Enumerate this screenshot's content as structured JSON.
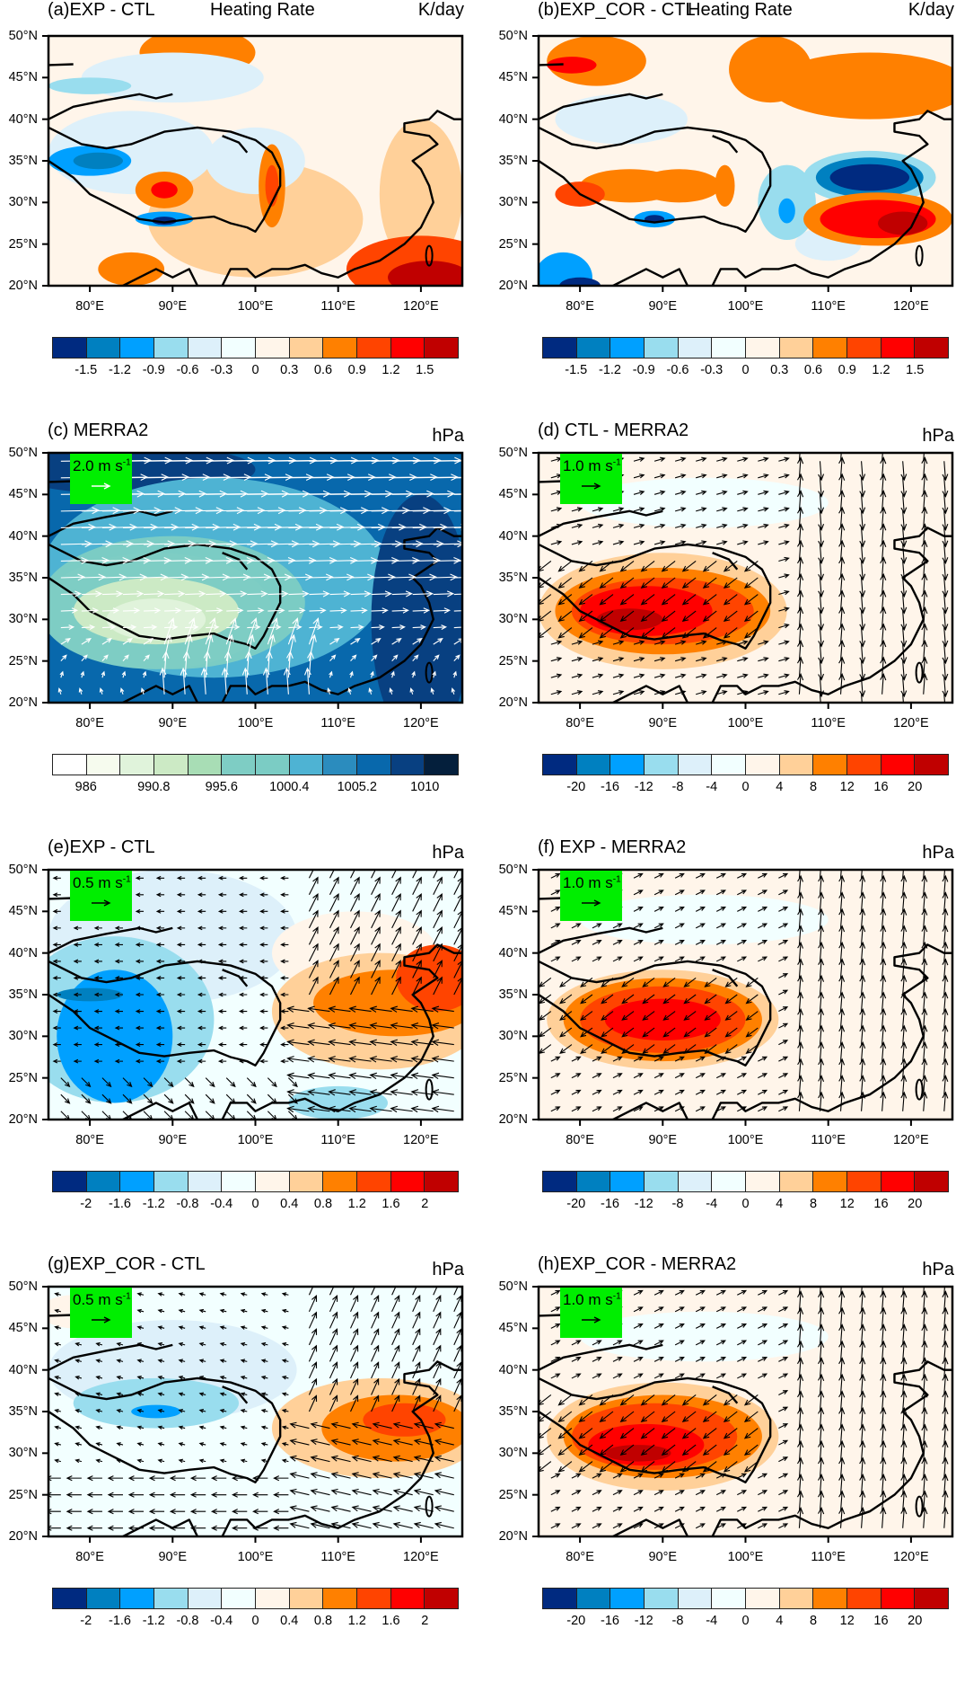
{
  "figure": {
    "lat_ticks": [
      "50°N",
      "45°N",
      "40°N",
      "35°N",
      "30°N",
      "25°N",
      "20°N"
    ],
    "lon_ticks": [
      "80°E",
      "90°E",
      "100°E",
      "110°E",
      "120°E"
    ],
    "palettes": {
      "diverging": [
        "#002a80",
        "#0080c0",
        "#00a0ff",
        "#99ddee",
        "#ddf0fa",
        "#f2ffff",
        "#fff5ea",
        "#ffd099",
        "#ff8000",
        "#ff4400",
        "#ff0000",
        "#c00000"
      ],
      "pressure": [
        "#ffffff",
        "#f6fbee",
        "#e0f3db",
        "#cceac5",
        "#a8ddb5",
        "#7ecdc4",
        "#7bccc4",
        "#4eb3d3",
        "#2b8cbe",
        "#0868ac",
        "#084081",
        "#041f3c"
      ]
    },
    "colors": {
      "ref_box": "#00ee00",
      "coast": "#000000"
    },
    "panels": [
      {
        "id": "a",
        "title_left": "(a)EXP - CTL",
        "title_center": "Heating Rate",
        "title_right": "K/day",
        "palette": "diverging",
        "colorbar_labels": [
          "-1.5",
          "-1.2",
          "-0.9",
          "-0.6",
          "-0.3",
          "0",
          "0.3",
          "0.6",
          "0.9",
          "1.2",
          "1.5"
        ],
        "label_step": 1
      },
      {
        "id": "b",
        "title_left": "(b)EXP_COR - CTL",
        "title_center": "Heating Rate",
        "title_right": "K/day",
        "palette": "diverging",
        "colorbar_labels": [
          "-1.5",
          "-1.2",
          "-0.9",
          "-0.6",
          "-0.3",
          "0",
          "0.3",
          "0.6",
          "0.9",
          "1.2",
          "1.5"
        ],
        "label_step": 1
      },
      {
        "id": "c",
        "title_left": "(c) MERRA2",
        "title_right": "hPa",
        "palette": "pressure",
        "colorbar_labels": [
          "986",
          "990.8",
          "995.6",
          "1000.4",
          "1005.2",
          "1010"
        ],
        "label_step": 2,
        "ref_vector": {
          "value": "2.0 m s",
          "exponent": "-1"
        },
        "vector_color": "#ffffff"
      },
      {
        "id": "d",
        "title_left": "(d) CTL - MERRA2",
        "title_right": "hPa",
        "palette": "diverging",
        "colorbar_labels": [
          "-20",
          "-16",
          "-12",
          "-8",
          "-4",
          "0",
          "4",
          "8",
          "12",
          "16",
          "20"
        ],
        "label_step": 1,
        "ref_vector": {
          "value": "1.0 m s",
          "exponent": "-1"
        },
        "vector_color": "#000000"
      },
      {
        "id": "e",
        "title_left": "(e)EXP - CTL",
        "title_right": "hPa",
        "palette": "diverging",
        "colorbar_labels": [
          "-2",
          "-1.6",
          "-1.2",
          "-0.8",
          "-0.4",
          "0",
          "0.4",
          "0.8",
          "1.2",
          "1.6",
          "2"
        ],
        "label_step": 1,
        "ref_vector": {
          "value": "0.5 m s",
          "exponent": "-1"
        },
        "vector_color": "#000000"
      },
      {
        "id": "f",
        "title_left": "(f) EXP - MERRA2",
        "title_right": "hPa",
        "palette": "diverging",
        "colorbar_labels": [
          "-20",
          "-16",
          "-12",
          "-8",
          "-4",
          "0",
          "4",
          "8",
          "12",
          "16",
          "20"
        ],
        "label_step": 1,
        "ref_vector": {
          "value": "1.0 m s",
          "exponent": "-1"
        },
        "vector_color": "#000000"
      },
      {
        "id": "g",
        "title_left": "(g)EXP_COR - CTL",
        "title_right": "hPa",
        "palette": "diverging",
        "colorbar_labels": [
          "-2",
          "-1.6",
          "-1.2",
          "-0.8",
          "-0.4",
          "0",
          "0.4",
          "0.8",
          "1.2",
          "1.6",
          "2"
        ],
        "label_step": 1,
        "ref_vector": {
          "value": "0.5 m s",
          "exponent": "-1"
        },
        "vector_color": "#000000"
      },
      {
        "id": "h",
        "title_left": "(h)EXP_COR - MERRA2",
        "title_right": "hPa",
        "palette": "diverging",
        "colorbar_labels": [
          "-20",
          "-16",
          "-12",
          "-8",
          "-4",
          "0",
          "4",
          "8",
          "12",
          "16",
          "20"
        ],
        "label_step": 1,
        "ref_vector": {
          "value": "1.0 m s",
          "exponent": "-1"
        },
        "vector_color": "#000000"
      }
    ]
  }
}
